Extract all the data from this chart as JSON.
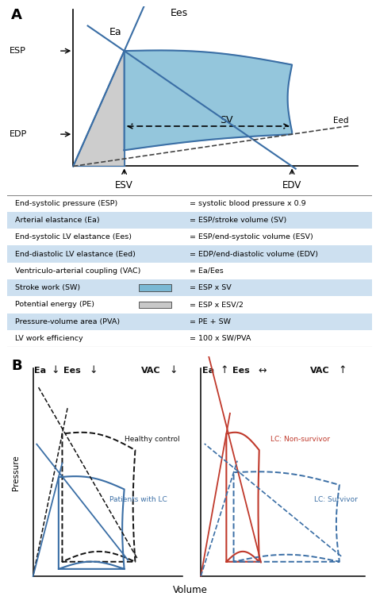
{
  "panel_A_label": "A",
  "panel_B_label": "B",
  "bg_color": "#ffffff",
  "table_bg_light": "#cde0f0",
  "blue_fill": "#7ab8d4",
  "gray_fill": "#c8c8c8",
  "table_rows": [
    {
      "label": "End-systolic pressure (ESP)",
      "formula": "= systolic blood pressure x 0.9",
      "shaded": false
    },
    {
      "label": "Arterial elastance (Ea)",
      "formula": "= ESP/stroke volume (SV)",
      "shaded": true
    },
    {
      "label": "End-systolic LV elastance (Ees)",
      "formula": "= ESP/end-systolic volume (ESV)",
      "shaded": false
    },
    {
      "label": "End-diastolic LV elastance (Eed)",
      "formula": "= EDP/end-diastolic volume (EDV)",
      "shaded": true
    },
    {
      "label": "Ventriculo-arterial coupling (VAC)",
      "formula": "= Ea/Ees",
      "shaded": false
    },
    {
      "label": "Stroke work (SW)",
      "formula": "= ESP x SV",
      "shaded": true,
      "swatch": "blue"
    },
    {
      "label": "Potential energy (PE)",
      "formula": "= ESP x ESV/2",
      "shaded": false,
      "swatch": "gray"
    },
    {
      "label": "Pressure-volume area (PVA)",
      "formula": "= PE + SW",
      "shaded": true
    },
    {
      "label": "LV work efficiency",
      "formula": "= 100 x SW/PVA",
      "shaded": false
    }
  ],
  "line_color_blue": "#3a6ea5",
  "line_color_red": "#c0392b",
  "line_color_black": "#222222"
}
